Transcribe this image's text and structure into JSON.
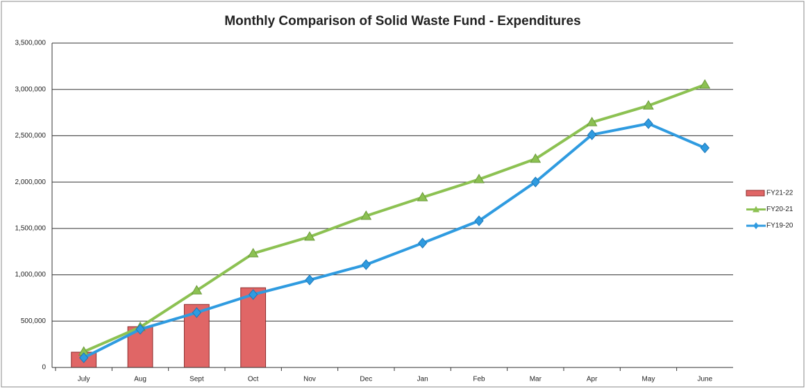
{
  "chart_data": {
    "type": "combo",
    "title": "Monthly Comparison of Solid Waste Fund - Expenditures",
    "categories": [
      "July",
      "Aug",
      "Sept",
      "Oct",
      "Nov",
      "Dec",
      "Jan",
      "Feb",
      "Mar",
      "Apr",
      "May",
      "June"
    ],
    "series": [
      {
        "name": "FY21-22",
        "type": "bar",
        "color": "#e06666",
        "values": [
          165000,
          440000,
          680000,
          860000,
          null,
          null,
          null,
          null,
          null,
          null,
          null,
          null
        ]
      },
      {
        "name": "FY20-21",
        "type": "line",
        "marker": "triangle",
        "color": "#8cc152",
        "values": [
          170000,
          435000,
          830000,
          1230000,
          1410000,
          1635000,
          1835000,
          2030000,
          2250000,
          2645000,
          2825000,
          3050000
        ]
      },
      {
        "name": "FY19-20",
        "type": "line",
        "marker": "diamond",
        "color": "#2f9be0",
        "values": [
          105000,
          412000,
          592000,
          787000,
          944000,
          1109000,
          1342000,
          1582000,
          2001000,
          2511000,
          2631000,
          2369000
        ]
      }
    ],
    "ylim": [
      0,
      3500000
    ],
    "yticks": [
      0,
      {
        "value": 500000,
        "label": "500,000"
      },
      {
        "value": 1000000,
        "label": "1,000,000"
      },
      {
        "value": 1500000,
        "label": "1,500,000"
      },
      {
        "value": 2000000,
        "label": "2,000,000"
      },
      {
        "value": 2500000,
        "label": "2,500,000"
      },
      {
        "value": 3000000,
        "label": "3,000,000"
      },
      {
        "value": 3500000,
        "label": "3,500,000"
      }
    ],
    "grid": true,
    "legend": "right"
  }
}
